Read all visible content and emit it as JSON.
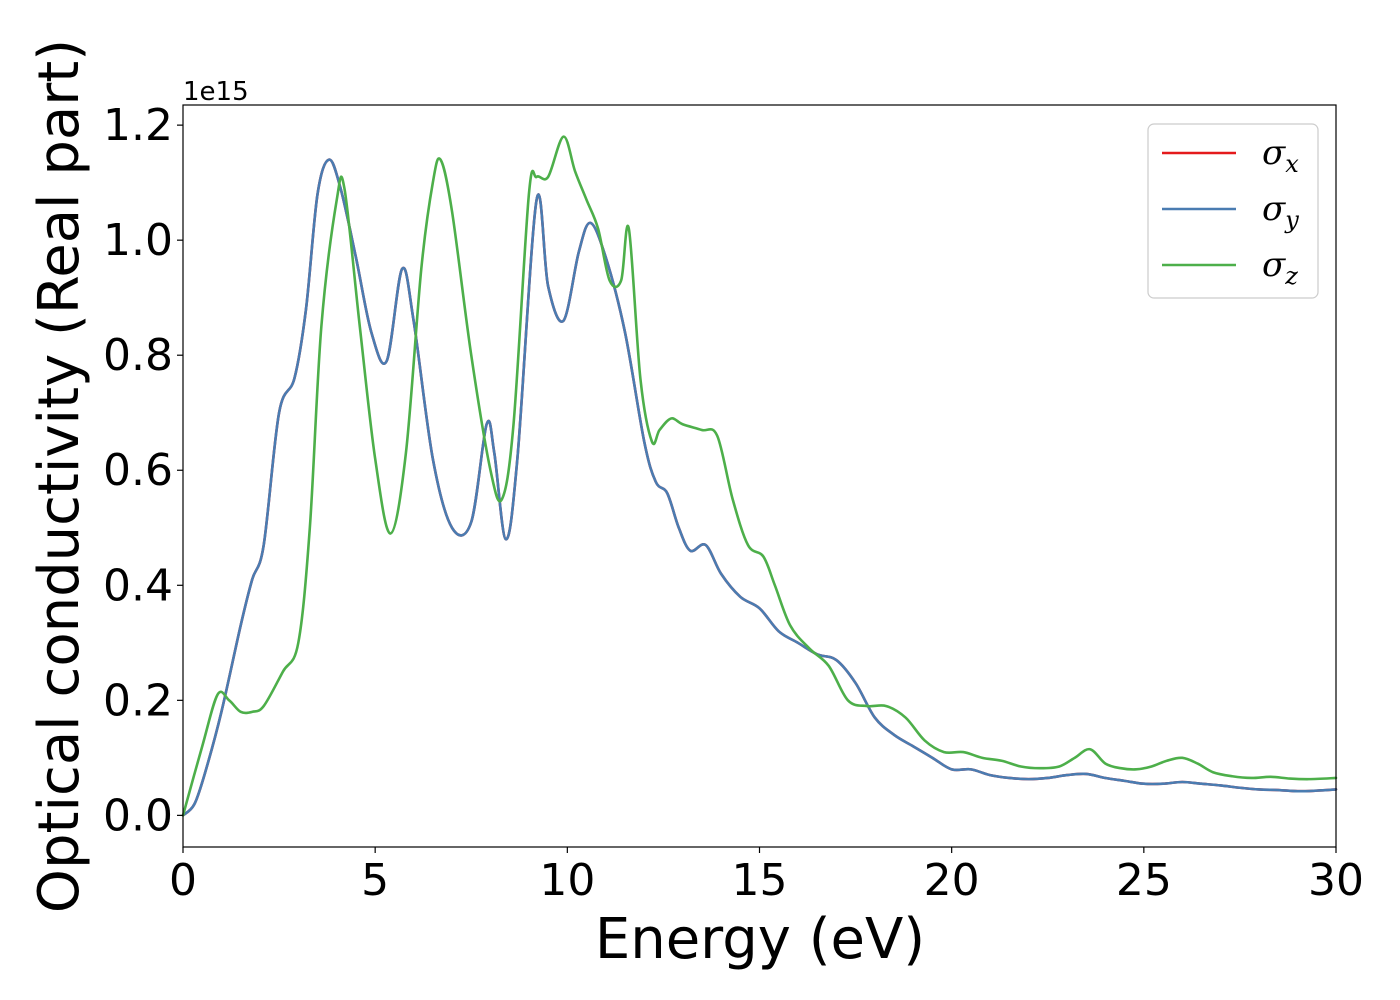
{
  "chart_data": {
    "type": "line",
    "xlabel": "Energy (eV)",
    "ylabel": "Optical conductivity (Real part)",
    "y_offset_label": "1e15",
    "y_scale": 1000000000000000.0,
    "xlim": [
      0,
      30
    ],
    "ylim": [
      -0.055,
      1.235
    ],
    "x_ticks": [
      0,
      5,
      10,
      15,
      20,
      25,
      30
    ],
    "x_tick_labels": [
      "0",
      "5",
      "10",
      "15",
      "20",
      "25",
      "30"
    ],
    "y_ticks": [
      0.0,
      0.2,
      0.4,
      0.6,
      0.8,
      1.0,
      1.2
    ],
    "y_tick_labels": [
      "0.0",
      "0.2",
      "0.4",
      "0.6",
      "0.8",
      "1.0",
      "1.2"
    ],
    "grid": false,
    "legend_position": "top-right",
    "series": [
      {
        "name": "σx",
        "legend_symbol": "σ",
        "legend_subscript": "x",
        "color": "#e41a1c",
        "x": [
          0,
          0.3,
          0.6,
          1.0,
          1.5,
          1.8,
          2.1,
          2.5,
          2.9,
          3.2,
          3.5,
          3.8,
          4.1,
          4.5,
          4.9,
          5.3,
          5.7,
          6.0,
          6.5,
          7.0,
          7.5,
          7.9,
          8.1,
          8.4,
          8.7,
          9.2,
          9.5,
          9.9,
          10.3,
          10.6,
          11.0,
          11.5,
          12.0,
          12.3,
          12.6,
          12.9,
          13.2,
          13.6,
          14.0,
          14.5,
          15.0,
          15.5,
          16.0,
          16.5,
          17.0,
          17.5,
          18.0,
          18.5,
          19.0,
          19.5,
          20.0,
          20.5,
          21.0,
          21.5,
          22.0,
          22.5,
          23.0,
          23.5,
          24.0,
          24.5,
          25.0,
          25.5,
          26.0,
          26.5,
          27.0,
          27.5,
          28.0,
          28.5,
          29.0,
          29.5,
          30.0
        ],
        "y": [
          0.0,
          0.02,
          0.08,
          0.18,
          0.33,
          0.41,
          0.47,
          0.7,
          0.76,
          0.88,
          1.08,
          1.14,
          1.09,
          0.97,
          0.84,
          0.79,
          0.95,
          0.86,
          0.62,
          0.5,
          0.51,
          0.68,
          0.63,
          0.48,
          0.62,
          1.07,
          0.92,
          0.86,
          0.98,
          1.03,
          0.97,
          0.84,
          0.65,
          0.58,
          0.56,
          0.5,
          0.46,
          0.47,
          0.42,
          0.38,
          0.36,
          0.32,
          0.3,
          0.28,
          0.27,
          0.23,
          0.17,
          0.14,
          0.12,
          0.1,
          0.08,
          0.08,
          0.07,
          0.065,
          0.063,
          0.065,
          0.07,
          0.072,
          0.065,
          0.06,
          0.055,
          0.055,
          0.058,
          0.055,
          0.052,
          0.048,
          0.045,
          0.044,
          0.042,
          0.043,
          0.045
        ]
      },
      {
        "name": "σy",
        "legend_symbol": "σ",
        "legend_subscript": "y",
        "color": "#4a7cb1",
        "x": [
          0,
          0.3,
          0.6,
          1.0,
          1.5,
          1.8,
          2.1,
          2.5,
          2.9,
          3.2,
          3.5,
          3.8,
          4.1,
          4.5,
          4.9,
          5.3,
          5.7,
          6.0,
          6.5,
          7.0,
          7.5,
          7.9,
          8.1,
          8.4,
          8.7,
          9.2,
          9.5,
          9.9,
          10.3,
          10.6,
          11.0,
          11.5,
          12.0,
          12.3,
          12.6,
          12.9,
          13.2,
          13.6,
          14.0,
          14.5,
          15.0,
          15.5,
          16.0,
          16.5,
          17.0,
          17.5,
          18.0,
          18.5,
          19.0,
          19.5,
          20.0,
          20.5,
          21.0,
          21.5,
          22.0,
          22.5,
          23.0,
          23.5,
          24.0,
          24.5,
          25.0,
          25.5,
          26.0,
          26.5,
          27.0,
          27.5,
          28.0,
          28.5,
          29.0,
          29.5,
          30.0
        ],
        "y": [
          0.0,
          0.02,
          0.08,
          0.18,
          0.33,
          0.41,
          0.47,
          0.7,
          0.76,
          0.88,
          1.08,
          1.14,
          1.09,
          0.97,
          0.84,
          0.79,
          0.95,
          0.86,
          0.62,
          0.5,
          0.51,
          0.68,
          0.63,
          0.48,
          0.62,
          1.07,
          0.92,
          0.86,
          0.98,
          1.03,
          0.97,
          0.84,
          0.65,
          0.58,
          0.56,
          0.5,
          0.46,
          0.47,
          0.42,
          0.38,
          0.36,
          0.32,
          0.3,
          0.28,
          0.27,
          0.23,
          0.17,
          0.14,
          0.12,
          0.1,
          0.08,
          0.08,
          0.07,
          0.065,
          0.063,
          0.065,
          0.07,
          0.072,
          0.065,
          0.06,
          0.055,
          0.055,
          0.058,
          0.055,
          0.052,
          0.048,
          0.045,
          0.044,
          0.042,
          0.043,
          0.045
        ]
      },
      {
        "name": "σz",
        "legend_symbol": "σ",
        "legend_subscript": "z",
        "color": "#4daf4a",
        "x": [
          0,
          0.5,
          0.9,
          1.2,
          1.5,
          1.8,
          2.1,
          2.6,
          3.0,
          3.3,
          3.6,
          4.0,
          4.2,
          4.6,
          5.0,
          5.4,
          5.8,
          6.2,
          6.5,
          6.7,
          7.0,
          7.5,
          8.0,
          8.3,
          8.6,
          9.0,
          9.2,
          9.5,
          9.9,
          10.2,
          10.5,
          10.8,
          11.1,
          11.4,
          11.6,
          11.9,
          12.2,
          12.4,
          12.7,
          13.0,
          13.5,
          13.9,
          14.3,
          14.7,
          15.1,
          15.4,
          15.8,
          16.3,
          16.8,
          17.3,
          17.8,
          18.3,
          18.8,
          19.3,
          19.8,
          20.3,
          20.8,
          21.3,
          21.8,
          22.3,
          22.8,
          23.2,
          23.6,
          24.0,
          24.4,
          24.8,
          25.2,
          25.6,
          26.0,
          26.4,
          26.8,
          27.3,
          27.8,
          28.3,
          28.8,
          29.3,
          30.0
        ],
        "y": [
          0.0,
          0.12,
          0.21,
          0.2,
          0.18,
          0.18,
          0.19,
          0.25,
          0.3,
          0.5,
          0.85,
          1.07,
          1.09,
          0.85,
          0.62,
          0.49,
          0.63,
          0.95,
          1.1,
          1.14,
          1.05,
          0.8,
          0.6,
          0.55,
          0.68,
          1.08,
          1.11,
          1.11,
          1.18,
          1.12,
          1.07,
          1.02,
          0.93,
          0.93,
          1.02,
          0.76,
          0.65,
          0.67,
          0.69,
          0.68,
          0.67,
          0.66,
          0.55,
          0.47,
          0.45,
          0.4,
          0.33,
          0.29,
          0.26,
          0.2,
          0.19,
          0.19,
          0.17,
          0.13,
          0.11,
          0.11,
          0.1,
          0.095,
          0.085,
          0.082,
          0.085,
          0.1,
          0.115,
          0.09,
          0.082,
          0.08,
          0.085,
          0.095,
          0.1,
          0.09,
          0.075,
          0.068,
          0.065,
          0.067,
          0.064,
          0.063,
          0.065
        ]
      }
    ]
  }
}
